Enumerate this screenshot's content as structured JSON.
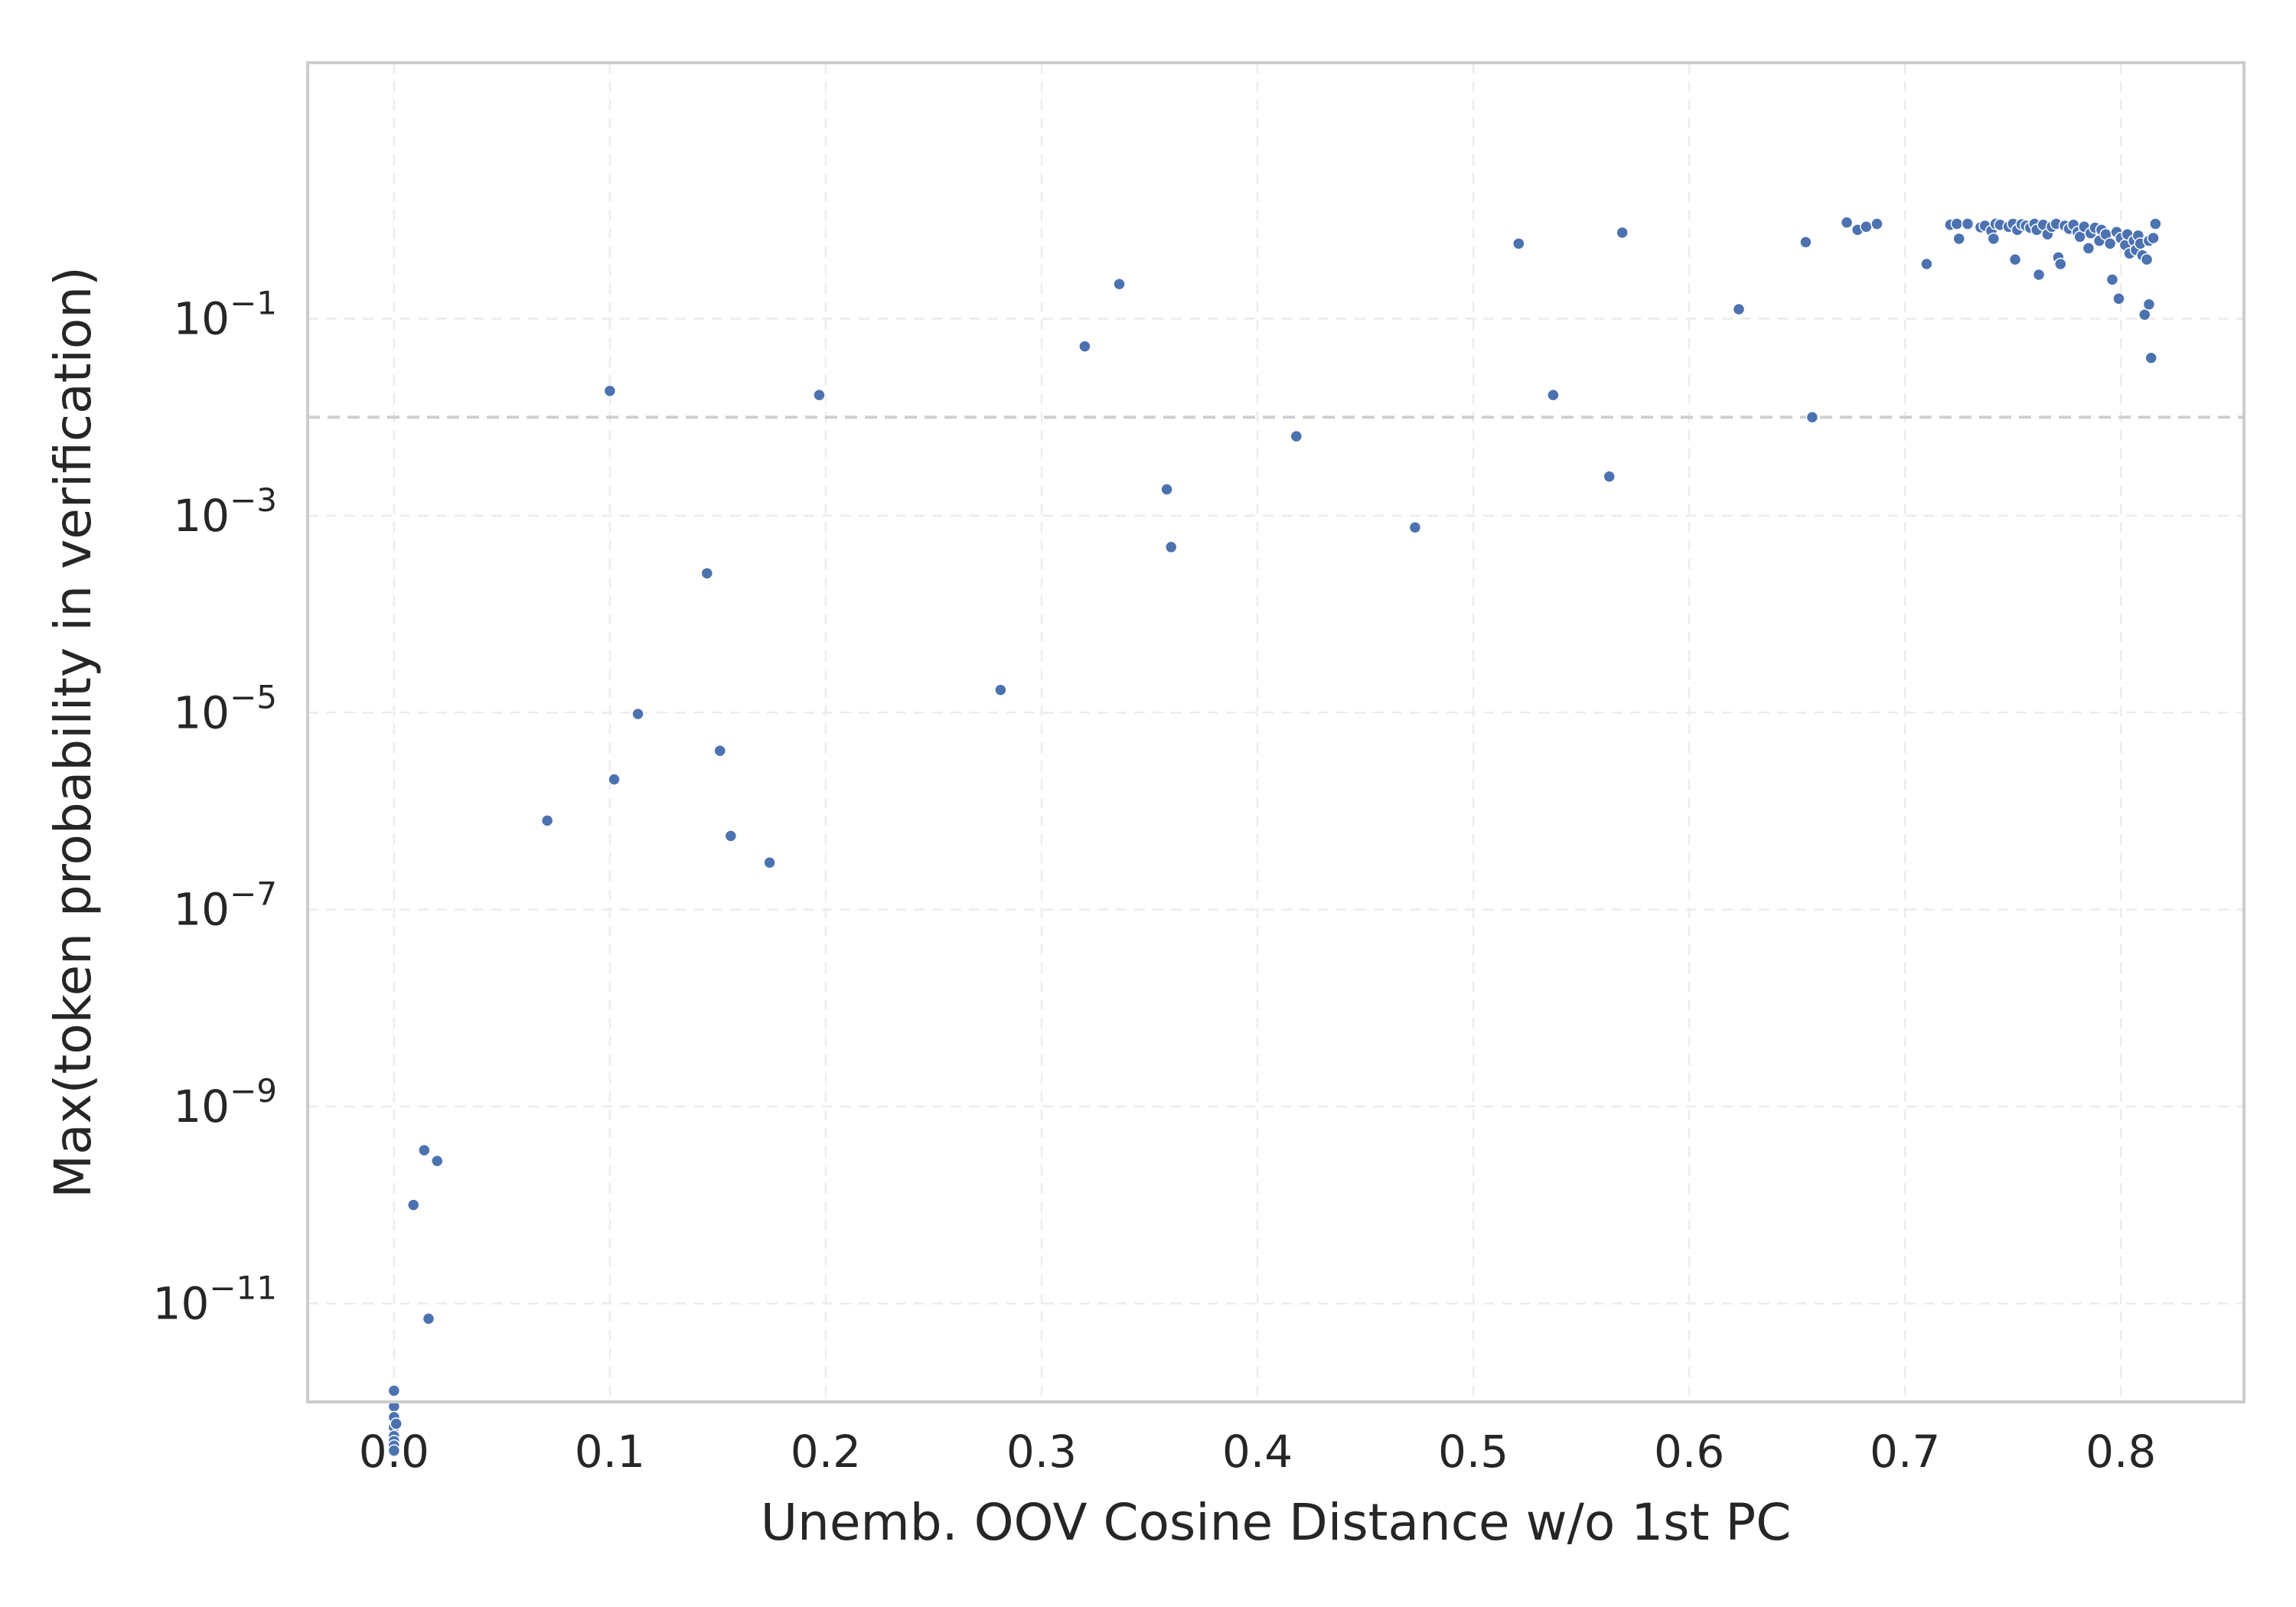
{
  "chart_data": {
    "type": "scatter",
    "title": "",
    "xlabel": "Unemb. OOV Cosine Distance w/o 1st PC",
    "ylabel": "Max(token probability in verification)",
    "xlim": [
      -0.04,
      0.857
    ],
    "ylim_log10": [
      -12.0,
      1.6
    ],
    "yscale": "log",
    "grid": true,
    "x_ticks": [
      "0.0",
      "0.1",
      "0.2",
      "0.3",
      "0.4",
      "0.5",
      "0.6",
      "0.7",
      "0.8"
    ],
    "x_tick_values": [
      0.0,
      0.1,
      0.2,
      0.3,
      0.4,
      0.5,
      0.6,
      0.7,
      0.8
    ],
    "y_ticks": [
      {
        "base": "10",
        "exp": "−1",
        "value_log10": -1
      },
      {
        "base": "10",
        "exp": "−3",
        "value_log10": -3
      },
      {
        "base": "10",
        "exp": "−5",
        "value_log10": -5
      },
      {
        "base": "10",
        "exp": "−7",
        "value_log10": -7
      },
      {
        "base": "10",
        "exp": "−9",
        "value_log10": -9
      },
      {
        "base": "10",
        "exp": "−11",
        "value_log10": -11
      }
    ],
    "reference_line": {
      "y": 0.01
    },
    "colors": {
      "points": "#4c72b0",
      "reference_line": "#cfcfcf"
    },
    "points": [
      {
        "x": 0.0,
        "y": 1.3e-12
      },
      {
        "x": 0.0,
        "y": 9e-13
      },
      {
        "x": 0.0,
        "y": 7e-13
      },
      {
        "x": 0.0,
        "y": 5.5e-13
      },
      {
        "x": 0.0,
        "y": 4.5e-13
      },
      {
        "x": 0.0,
        "y": 4e-13
      },
      {
        "x": 0.0,
        "y": 3.6e-13
      },
      {
        "x": 0.0,
        "y": 3.2e-13
      },
      {
        "x": 0.001,
        "y": 6e-13
      },
      {
        "x": 0.009,
        "y": 1e-10
      },
      {
        "x": 0.014,
        "y": 3.6e-10
      },
      {
        "x": 0.016,
        "y": 7e-12
      },
      {
        "x": 0.02,
        "y": 2.8e-10
      },
      {
        "x": 0.071,
        "y": 8e-07
      },
      {
        "x": 0.1,
        "y": 0.0185
      },
      {
        "x": 0.102,
        "y": 2.1e-06
      },
      {
        "x": 0.113,
        "y": 9.7e-06
      },
      {
        "x": 0.145,
        "y": 0.00026
      },
      {
        "x": 0.151,
        "y": 4.1e-06
      },
      {
        "x": 0.156,
        "y": 5.6e-07
      },
      {
        "x": 0.174,
        "y": 3e-07
      },
      {
        "x": 0.197,
        "y": 0.0168
      },
      {
        "x": 0.281,
        "y": 1.7e-05
      },
      {
        "x": 0.32,
        "y": 0.0525
      },
      {
        "x": 0.336,
        "y": 0.225
      },
      {
        "x": 0.358,
        "y": 0.00185
      },
      {
        "x": 0.36,
        "y": 0.00048
      },
      {
        "x": 0.418,
        "y": 0.0064
      },
      {
        "x": 0.473,
        "y": 0.00076
      },
      {
        "x": 0.521,
        "y": 0.58
      },
      {
        "x": 0.537,
        "y": 0.0168
      },
      {
        "x": 0.563,
        "y": 0.0025
      },
      {
        "x": 0.569,
        "y": 0.75
      },
      {
        "x": 0.623,
        "y": 0.125
      },
      {
        "x": 0.654,
        "y": 0.6
      },
      {
        "x": 0.657,
        "y": 0.01
      },
      {
        "x": 0.673,
        "y": 0.95
      },
      {
        "x": 0.678,
        "y": 0.8
      },
      {
        "x": 0.682,
        "y": 0.86
      },
      {
        "x": 0.687,
        "y": 0.92
      },
      {
        "x": 0.71,
        "y": 0.36
      },
      {
        "x": 0.721,
        "y": 0.9
      },
      {
        "x": 0.724,
        "y": 0.92
      },
      {
        "x": 0.725,
        "y": 0.65
      },
      {
        "x": 0.729,
        "y": 0.92
      },
      {
        "x": 0.735,
        "y": 0.85
      },
      {
        "x": 0.737,
        "y": 0.88
      },
      {
        "x": 0.74,
        "y": 0.78
      },
      {
        "x": 0.741,
        "y": 0.65
      },
      {
        "x": 0.742,
        "y": 0.92
      },
      {
        "x": 0.744,
        "y": 0.9
      },
      {
        "x": 0.748,
        "y": 0.86
      },
      {
        "x": 0.75,
        "y": 0.92
      },
      {
        "x": 0.751,
        "y": 0.4
      },
      {
        "x": 0.752,
        "y": 0.8
      },
      {
        "x": 0.754,
        "y": 0.91
      },
      {
        "x": 0.756,
        "y": 0.88
      },
      {
        "x": 0.758,
        "y": 0.84
      },
      {
        "x": 0.76,
        "y": 0.92
      },
      {
        "x": 0.761,
        "y": 0.8
      },
      {
        "x": 0.762,
        "y": 0.28
      },
      {
        "x": 0.764,
        "y": 0.9
      },
      {
        "x": 0.766,
        "y": 0.72
      },
      {
        "x": 0.768,
        "y": 0.86
      },
      {
        "x": 0.77,
        "y": 0.92
      },
      {
        "x": 0.771,
        "y": 0.42
      },
      {
        "x": 0.772,
        "y": 0.36
      },
      {
        "x": 0.774,
        "y": 0.88
      },
      {
        "x": 0.776,
        "y": 0.82
      },
      {
        "x": 0.778,
        "y": 0.9
      },
      {
        "x": 0.78,
        "y": 0.76
      },
      {
        "x": 0.781,
        "y": 0.68
      },
      {
        "x": 0.783,
        "y": 0.86
      },
      {
        "x": 0.785,
        "y": 0.52
      },
      {
        "x": 0.786,
        "y": 0.74
      },
      {
        "x": 0.788,
        "y": 0.84
      },
      {
        "x": 0.79,
        "y": 0.62
      },
      {
        "x": 0.791,
        "y": 0.8
      },
      {
        "x": 0.793,
        "y": 0.72
      },
      {
        "x": 0.795,
        "y": 0.58
      },
      {
        "x": 0.796,
        "y": 0.25
      },
      {
        "x": 0.798,
        "y": 0.76
      },
      {
        "x": 0.799,
        "y": 0.16
      },
      {
        "x": 0.8,
        "y": 0.66
      },
      {
        "x": 0.802,
        "y": 0.56
      },
      {
        "x": 0.803,
        "y": 0.72
      },
      {
        "x": 0.804,
        "y": 0.46
      },
      {
        "x": 0.806,
        "y": 0.62
      },
      {
        "x": 0.807,
        "y": 0.5
      },
      {
        "x": 0.808,
        "y": 0.7
      },
      {
        "x": 0.809,
        "y": 0.58
      },
      {
        "x": 0.81,
        "y": 0.44
      },
      {
        "x": 0.811,
        "y": 0.11
      },
      {
        "x": 0.812,
        "y": 0.4
      },
      {
        "x": 0.813,
        "y": 0.14
      },
      {
        "x": 0.813,
        "y": 0.62
      },
      {
        "x": 0.814,
        "y": 0.04
      },
      {
        "x": 0.815,
        "y": 0.66
      },
      {
        "x": 0.816,
        "y": 0.92
      }
    ]
  }
}
